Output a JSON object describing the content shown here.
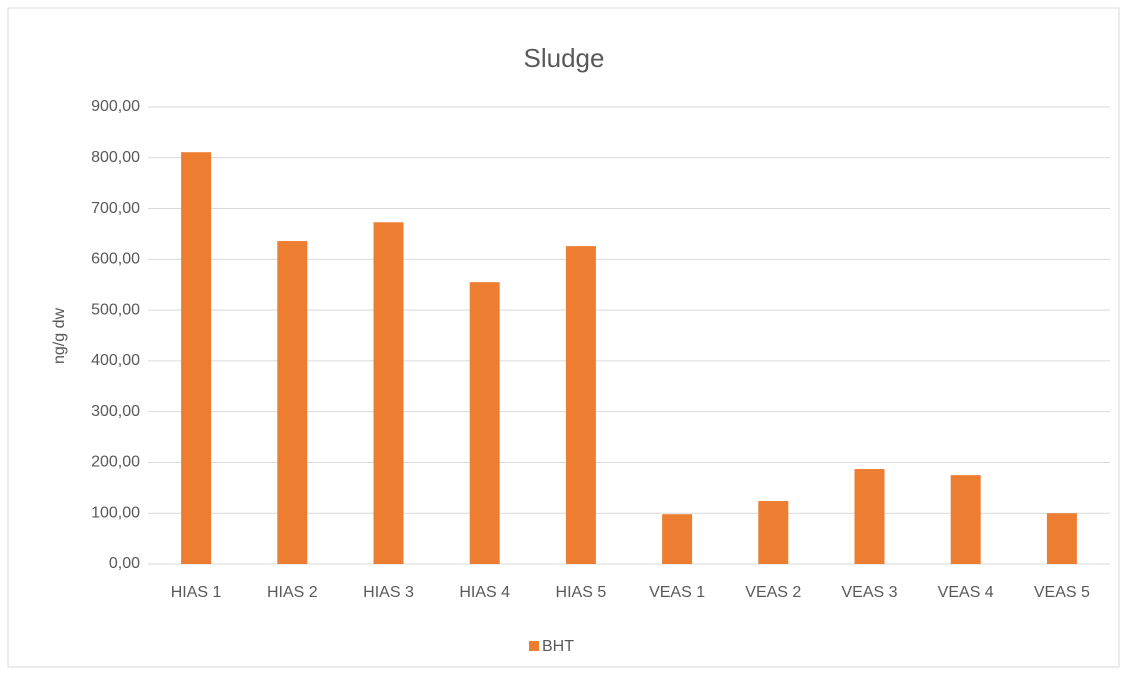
{
  "chart_data": {
    "type": "bar",
    "title": "Sludge",
    "y_label": "ng/g dw",
    "categories": [
      "HIAS 1",
      "HIAS 2",
      "HIAS 3",
      "HIAS 4",
      "HIAS 5",
      "VEAS 1",
      "VEAS 2",
      "VEAS 3",
      "VEAS 4",
      "VEAS 5"
    ],
    "series": [
      {
        "name": "BHT",
        "color": "#ed7d31",
        "values": [
          811,
          636,
          673,
          555,
          626,
          98,
          124,
          187,
          175,
          100
        ]
      }
    ],
    "ylim": [
      0,
      900
    ],
    "yticks": [
      {
        "value": 0,
        "label": "0,00"
      },
      {
        "value": 100,
        "label": "100,00"
      },
      {
        "value": 200,
        "label": "200,00"
      },
      {
        "value": 300,
        "label": "300,00"
      },
      {
        "value": 400,
        "label": "400,00"
      },
      {
        "value": 500,
        "label": "500,00"
      },
      {
        "value": 600,
        "label": "600,00"
      },
      {
        "value": 700,
        "label": "700,00"
      },
      {
        "value": 800,
        "label": "800,00"
      },
      {
        "value": 900,
        "label": "900,00"
      }
    ],
    "grid": true,
    "legend": "bottom"
  }
}
